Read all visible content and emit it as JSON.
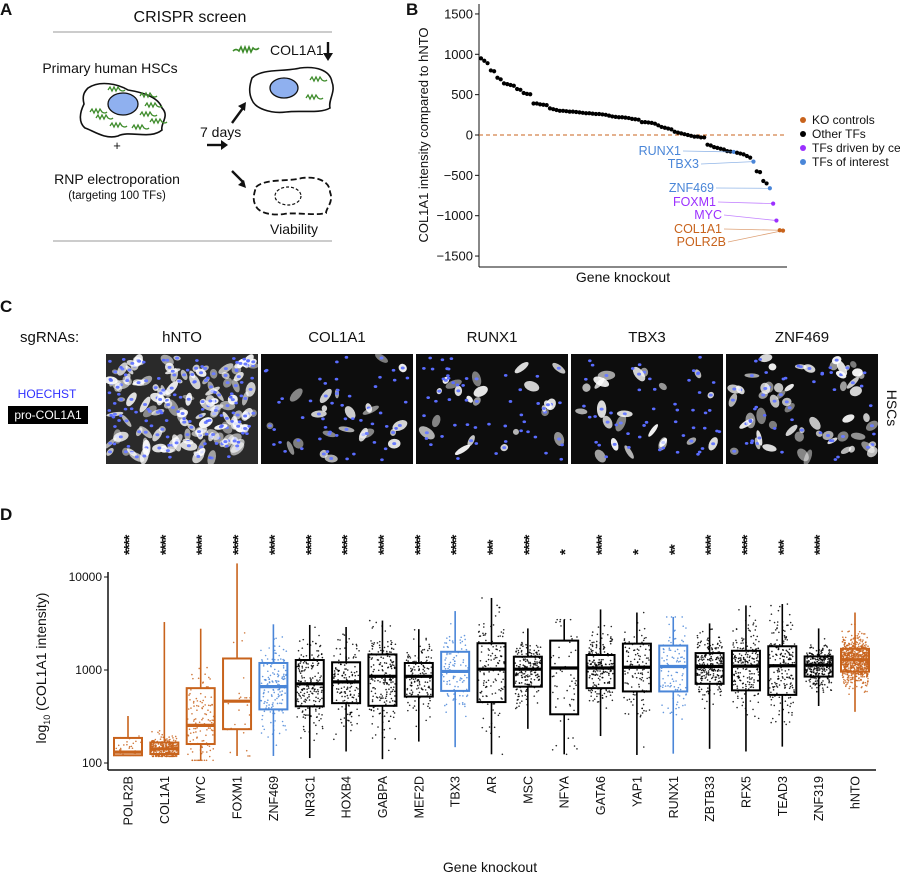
{
  "colors": {
    "ko_controls": "#c8631c",
    "other_tfs": "#000000",
    "driven_by_cell": "#9b30ff",
    "of_interest": "#4a86d8"
  },
  "panel_a": {
    "letter": "A",
    "title": "CRISPR screen",
    "cells_label": "Primary human HSCs",
    "plus": "+",
    "rnp_label": "RNP electroporation",
    "rnp_sub": "(targeting 100 TFs)",
    "days_label": "7 days",
    "col1a1_label": "COL1A1",
    "viability_label": "Viability"
  },
  "panel_c": {
    "letter": "C",
    "sgrnas_label": "sgRNAs:",
    "stain_hoechst": "HOECHST",
    "stain_col1a1": "pro-COL1A1",
    "side_label": "HSCs",
    "images": [
      {
        "label": "hNTO",
        "density": "high"
      },
      {
        "label": "COL1A1",
        "density": "low"
      },
      {
        "label": "RUNX1",
        "density": "low"
      },
      {
        "label": "TBX3",
        "density": "low"
      },
      {
        "label": "ZNF469",
        "density": "medium"
      }
    ]
  },
  "chart_data": [
    {
      "panel": "B",
      "type": "scatter",
      "ylabel": "COL1A1 intensity compared to hNTO",
      "xlabel": "Gene knockout",
      "ylim": [
        -1600,
        1600
      ],
      "yticks": [
        1500,
        1000,
        500,
        0,
        -500,
        -1000,
        -1500
      ],
      "reference_line": {
        "y": 0,
        "style": "dashed",
        "color": "#c8631c"
      },
      "legend": {
        "position": "right",
        "entries": [
          {
            "label": "KO controls",
            "group": "ko_controls"
          },
          {
            "label": "Other TFs",
            "group": "other_tfs"
          },
          {
            "label": "TFs driven by cell",
            "group": "driven_by_cell"
          },
          {
            "label": "TFs of interest",
            "group": "of_interest"
          }
        ]
      },
      "other_tfs_values": [
        950,
        920,
        890,
        800,
        790,
        710,
        690,
        640,
        630,
        620,
        610,
        570,
        560,
        520,
        510,
        505,
        390,
        390,
        380,
        375,
        370,
        330,
        320,
        310,
        300,
        300,
        295,
        290,
        290,
        285,
        280,
        275,
        270,
        270,
        265,
        260,
        260,
        255,
        250,
        240,
        230,
        225,
        220,
        220,
        215,
        210,
        200,
        195,
        190,
        160,
        160,
        155,
        150,
        140,
        120,
        100,
        90,
        80,
        70,
        40,
        30,
        20,
        10,
        0,
        -10,
        -20,
        -20,
        -30,
        -30,
        -120,
        -130,
        -150,
        -160,
        -170,
        -180,
        -200,
        -205,
        -220,
        -230,
        -240,
        -260,
        -280,
        -450,
        -460,
        -570,
        -600
      ],
      "highlighted": [
        {
          "label": "RUNX1",
          "value": -210,
          "group": "of_interest"
        },
        {
          "label": "TBX3",
          "value": -330,
          "group": "of_interest"
        },
        {
          "label": "ZNF469",
          "value": -660,
          "group": "of_interest"
        },
        {
          "label": "FOXM1",
          "value": -850,
          "group": "driven_by_cell"
        },
        {
          "label": "MYC",
          "value": -1060,
          "group": "driven_by_cell"
        },
        {
          "label": "COL1A1",
          "value": -1180,
          "group": "ko_controls"
        },
        {
          "label": "POLR2B",
          "value": -1185,
          "group": "ko_controls"
        }
      ]
    },
    {
      "panel": "D",
      "type": "box",
      "ylabel_main": "log",
      "ylabel_sub": "10",
      "ylabel_rest": " (COL1A1 intensity)",
      "xlabel": "Gene knockout",
      "yscale": "log",
      "ylim": [
        90,
        16000
      ],
      "yticks": [
        {
          "value": 100,
          "label": "100"
        },
        {
          "value": 1000,
          "label": "1000"
        },
        {
          "value": 10000,
          "label": "10000"
        }
      ],
      "categories": [
        {
          "name": "POLR2B",
          "group": "ko_controls",
          "sig": "****",
          "whisker_low": 121,
          "q1": 121,
          "median": 131,
          "q3": 186,
          "whisker_high": 320,
          "n": 40
        },
        {
          "name": "COL1A1",
          "group": "ko_controls",
          "sig": "****",
          "whisker_low": 118,
          "q1": 125,
          "median": 142,
          "q3": 166,
          "whisker_high": 3280,
          "n": 300
        },
        {
          "name": "MYC",
          "group": "ko_controls",
          "sig": "****",
          "whisker_low": 107,
          "q1": 160,
          "median": 254,
          "q3": 638,
          "whisker_high": 2780,
          "n": 120
        },
        {
          "name": "FOXM1",
          "group": "ko_controls",
          "sig": "****",
          "whisker_low": 119,
          "q1": 231,
          "median": 462,
          "q3": 1330,
          "whisker_high": 14000,
          "n": 25
        },
        {
          "name": "ZNF469",
          "group": "of_interest",
          "sig": "****",
          "whisker_low": 119,
          "q1": 377,
          "median": 662,
          "q3": 1190,
          "whisker_high": 3100,
          "n": 150
        },
        {
          "name": "NR3C1",
          "group": "other_tfs",
          "sig": "****",
          "whisker_low": 113,
          "q1": 407,
          "median": 710,
          "q3": 1280,
          "whisker_high": 3050,
          "n": 200
        },
        {
          "name": "HOXB4",
          "group": "other_tfs",
          "sig": "****",
          "whisker_low": 133,
          "q1": 440,
          "median": 745,
          "q3": 1210,
          "whisker_high": 2900,
          "n": 150
        },
        {
          "name": "GABPA",
          "group": "other_tfs",
          "sig": "****",
          "whisker_low": 110,
          "q1": 412,
          "median": 855,
          "q3": 1470,
          "whisker_high": 3400,
          "n": 200
        },
        {
          "name": "MEF2D",
          "group": "other_tfs",
          "sig": "****",
          "whisker_low": 170,
          "q1": 518,
          "median": 855,
          "q3": 1190,
          "whisker_high": 2750,
          "n": 150
        },
        {
          "name": "TBX3",
          "group": "of_interest",
          "sig": "****",
          "whisker_low": 148,
          "q1": 596,
          "median": 965,
          "q3": 1570,
          "whisker_high": 4300,
          "n": 100
        },
        {
          "name": "AR",
          "group": "other_tfs",
          "sig": "***",
          "whisker_low": 124,
          "q1": 452,
          "median": 1020,
          "q3": 1940,
          "whisker_high": 5950,
          "n": 130
        },
        {
          "name": "MSC",
          "group": "other_tfs",
          "sig": "****",
          "whisker_low": 233,
          "q1": 662,
          "median": 1020,
          "q3": 1390,
          "whisker_high": 2800,
          "n": 200
        },
        {
          "name": "NFYA",
          "group": "other_tfs",
          "sig": "*",
          "whisker_low": 124,
          "q1": 334,
          "median": 1050,
          "q3": 2070,
          "whisker_high": 3480,
          "n": 60
        },
        {
          "name": "GATA6",
          "group": "other_tfs",
          "sig": "****",
          "whisker_low": 195,
          "q1": 638,
          "median": 1050,
          "q3": 1450,
          "whisker_high": 4480,
          "n": 200
        },
        {
          "name": "YAP1",
          "group": "other_tfs",
          "sig": "*",
          "whisker_low": 122,
          "q1": 588,
          "median": 1070,
          "q3": 1920,
          "whisker_high": 4150,
          "n": 120
        },
        {
          "name": "RUNX1",
          "group": "of_interest",
          "sig": "**",
          "whisker_low": 126,
          "q1": 588,
          "median": 1090,
          "q3": 1830,
          "whisker_high": 3720,
          "n": 100
        },
        {
          "name": "ZBTB33",
          "group": "other_tfs",
          "sig": "****",
          "whisker_low": 142,
          "q1": 710,
          "median": 1090,
          "q3": 1520,
          "whisker_high": 3170,
          "n": 250
        },
        {
          "name": "RFX5",
          "group": "other_tfs",
          "sig": "****",
          "whisker_low": 133,
          "q1": 604,
          "median": 1100,
          "q3": 1610,
          "whisker_high": 4950,
          "n": 200
        },
        {
          "name": "TEAD3",
          "group": "other_tfs",
          "sig": "***",
          "whisker_low": 150,
          "q1": 540,
          "median": 1110,
          "q3": 1800,
          "whisker_high": 5120,
          "n": 200
        },
        {
          "name": "ZNF319",
          "group": "other_tfs",
          "sig": "****",
          "whisker_low": 410,
          "q1": 850,
          "median": 1130,
          "q3": 1400,
          "whisker_high": 2800,
          "n": 300
        },
        {
          "name": "hNTO",
          "group": "ko_controls",
          "sig": "",
          "whisker_low": 355,
          "q1": 960,
          "median": 1290,
          "q3": 1690,
          "whisker_high": 4150,
          "n": 700
        }
      ]
    }
  ]
}
